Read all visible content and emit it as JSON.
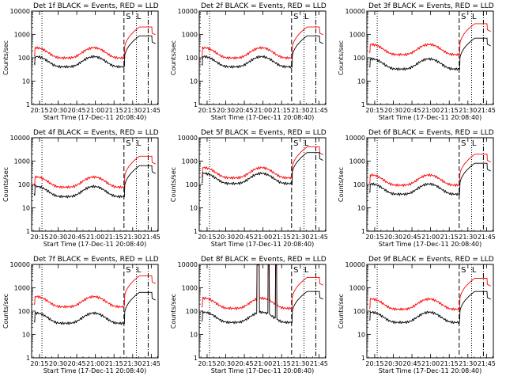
{
  "figure": {
    "xlabel": "Start Time (17-Dec-11 20:08:40)",
    "ylabel": "Counts/sec"
  },
  "chart_data": [
    {
      "type": "line",
      "title": "Det 1f BLACK = Events, RED = LLD",
      "black_base": 75,
      "red_base": 180,
      "black_spike": 0,
      "red_spike": 0
    },
    {
      "type": "line",
      "title": "Det 2f BLACK = Events, RED = LLD",
      "black_base": 75,
      "red_base": 180,
      "black_spike": 0,
      "red_spike": 0
    },
    {
      "type": "line",
      "title": "Det 3f BLACK = Events, RED = LLD",
      "black_base": 60,
      "red_base": 250,
      "black_spike": 0,
      "red_spike": 0
    },
    {
      "type": "line",
      "title": "Det 4f BLACK = Events, RED = LLD",
      "black_base": 55,
      "red_base": 140,
      "black_spike": 0,
      "red_spike": 0
    },
    {
      "type": "line",
      "title": "Det 5f BLACK = Events, RED = LLD",
      "black_base": 200,
      "red_base": 350,
      "black_spike": 0,
      "red_spike": 0
    },
    {
      "type": "line",
      "title": "Det 6f BLACK = Events, RED = LLD",
      "black_base": 70,
      "red_base": 170,
      "black_spike": 0,
      "red_spike": 0
    },
    {
      "type": "line",
      "title": "Det 7f BLACK = Events, RED = LLD",
      "black_base": 55,
      "red_base": 280,
      "black_spike": 0,
      "red_spike": 0
    },
    {
      "type": "line",
      "title": "Det 8f BLACK = Events, RED = LLD",
      "black_base": 60,
      "red_base": 240,
      "black_spike": 1,
      "red_spike": 1
    },
    {
      "type": "line",
      "title": "Det 9f BLACK = Events, RED = LLD",
      "black_base": 60,
      "red_base": 220,
      "black_spike": 0,
      "red_spike": 0
    }
  ],
  "axes": {
    "xlim": [
      "20:08:40",
      "21:50:30"
    ],
    "x_ticks": [
      "20:15",
      "20:30",
      "20:45",
      "21:00",
      "21:15",
      "21:30",
      "21:45"
    ],
    "y_scale": "log",
    "ylim": [
      1,
      10000
    ],
    "y_ticks": [
      "1",
      "10",
      "100",
      "1000",
      "10000"
    ],
    "vlines": [
      {
        "time": "20:17:00",
        "style": "dotted"
      },
      {
        "time": "21:23:00",
        "style": "dashed"
      },
      {
        "time": "21:33:00",
        "style": "dotted"
      },
      {
        "time": "21:42:30",
        "style": "dash-dot"
      }
    ],
    "markers": [
      {
        "label": "S",
        "time": "21:26:30"
      },
      {
        "label": "L",
        "time": "21:35:00"
      }
    ]
  },
  "colors": {
    "events": "#000000",
    "lld": "#ff0000"
  }
}
